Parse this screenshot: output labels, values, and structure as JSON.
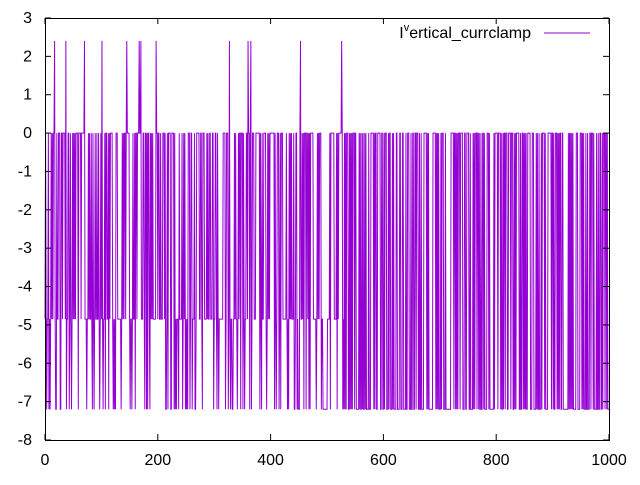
{
  "chart_data": {
    "type": "line",
    "title": "",
    "xlabel": "",
    "ylabel": "",
    "xlim": [
      0,
      1000
    ],
    "ylim": [
      -8,
      3
    ],
    "x_ticks": [
      0,
      200,
      400,
      600,
      800,
      1000
    ],
    "y_ticks": [
      3,
      2,
      1,
      0,
      -1,
      -2,
      -3,
      -4,
      -5,
      -6,
      -7,
      -8
    ],
    "grid": false,
    "legend_position": "top-right",
    "series": [
      {
        "name": "I^vertical_currclamp",
        "legend_label_main": "I",
        "legend_label_sup": "v",
        "legend_label_rest": "ertical_currclamp",
        "color": "#9400d3",
        "baseline": 0,
        "spike_high": 2.4,
        "dip_mid": -4.85,
        "dip_low": -7.2,
        "spike_x": [
          17,
          37,
          70,
          101,
          145,
          167,
          170,
          197,
          327,
          360,
          365,
          453,
          526
        ],
        "flat_low_segment_x": [
          493,
          500
        ],
        "description_values_note": "oscillates between 0, -4.85 and -7.2 with occasional spikes to 2.4"
      }
    ]
  }
}
